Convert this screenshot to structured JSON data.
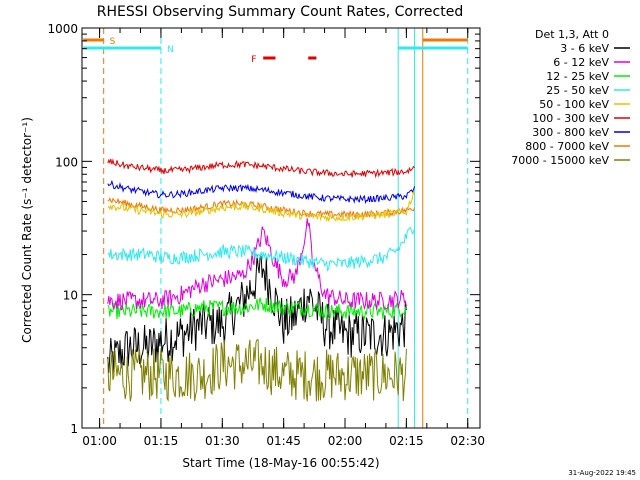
{
  "chart_data": {
    "type": "line",
    "title": "RHESSI Observing Summary Count Rates, Corrected",
    "xlabel": "Start Time (18-May-16 00:55:42)",
    "ylabel": "Corrected Count Rate (s⁻¹ detector⁻¹)",
    "y_scale": "log",
    "ylim": [
      1,
      1000
    ],
    "xlim": [
      "00:55:42",
      "02:33:00"
    ],
    "x_ticks": [
      "01:00",
      "01:15",
      "01:30",
      "01:45",
      "02:00",
      "02:15",
      "02:30"
    ],
    "y_ticks": [
      "1",
      "10",
      "100",
      "1000"
    ],
    "grid": false,
    "legend_position": "right",
    "legend_header": "Det 1,3, Att 0",
    "timestamp": "31-Aug-2022 19:45",
    "flags": [
      {
        "label": "S",
        "color": "#f07800",
        "segments": [
          [
            "00:56",
            "01:01"
          ],
          [
            "02:19",
            "02:30"
          ]
        ]
      },
      {
        "label": "N",
        "color": "#30e8f0",
        "segments": [
          [
            "00:56",
            "01:15"
          ],
          [
            "02:13",
            "02:30"
          ]
        ]
      },
      {
        "label": "F",
        "color": "#e00000",
        "segments": [
          [
            "01:40",
            "01:43"
          ],
          [
            "01:51",
            "01:53"
          ]
        ]
      }
    ],
    "vertical_markers": [
      {
        "time": "01:01",
        "color": "#f07800",
        "style": "dashed"
      },
      {
        "time": "01:15",
        "color": "#30e8f0",
        "style": "dashed"
      },
      {
        "time": "02:13",
        "color": "#30e8f0",
        "style": "solid"
      },
      {
        "time": "02:17",
        "color": "#30e8f0",
        "style": "solid"
      },
      {
        "time": "02:19",
        "color": "#f07800",
        "style": "solid"
      },
      {
        "time": "02:30",
        "color": "#30e8f0",
        "style": "dashed"
      }
    ],
    "series": [
      {
        "name": "3 - 6 keV",
        "color": "#000000",
        "x": [
          "01:02",
          "01:07",
          "01:12",
          "01:15",
          "01:20",
          "01:25",
          "01:30",
          "01:35",
          "01:40",
          "01:43",
          "01:45",
          "01:48",
          "01:51",
          "01:55",
          "02:00",
          "02:05",
          "02:10",
          "02:15"
        ],
        "values": [
          3,
          4,
          4,
          4.5,
          5,
          6,
          6,
          9,
          16,
          9,
          6,
          7,
          10,
          6,
          5,
          5,
          5,
          6
        ]
      },
      {
        "name": "6 - 12 keV",
        "color": "#e000e0",
        "x": [
          "01:02",
          "01:07",
          "01:12",
          "01:15",
          "01:20",
          "01:25",
          "01:30",
          "01:35",
          "01:38",
          "01:40",
          "01:43",
          "01:45",
          "01:48",
          "01:51",
          "01:52",
          "01:55",
          "02:00",
          "02:05",
          "02:10",
          "02:15"
        ],
        "values": [
          9,
          9,
          9,
          9,
          10,
          12,
          13,
          14,
          20,
          30,
          17,
          13,
          14,
          35,
          18,
          10,
          9,
          9,
          9,
          9.5
        ]
      },
      {
        "name": "12 - 25 keV",
        "color": "#00ee00",
        "x": [
          "01:02",
          "01:07",
          "01:12",
          "01:15",
          "01:20",
          "01:25",
          "01:30",
          "01:35",
          "01:40",
          "01:45",
          "01:50",
          "01:55",
          "02:00",
          "02:05",
          "02:10",
          "02:15"
        ],
        "values": [
          7.5,
          7.5,
          7.5,
          7.5,
          7.5,
          8,
          8,
          8,
          8.5,
          8,
          8,
          7.5,
          7.5,
          7.5,
          7.5,
          8
        ]
      },
      {
        "name": "25 - 50 keV",
        "color": "#30e8f0",
        "x": [
          "01:02",
          "01:07",
          "01:12",
          "01:15",
          "01:20",
          "01:25",
          "01:30",
          "01:35",
          "01:40",
          "01:45",
          "01:50",
          "01:55",
          "02:00",
          "02:05",
          "02:10",
          "02:13",
          "02:15",
          "02:17"
        ],
        "values": [
          20,
          20,
          20,
          19,
          19,
          20,
          21,
          21,
          20,
          19,
          18,
          17,
          17,
          18,
          19,
          22,
          27,
          34
        ]
      },
      {
        "name": "50 - 100 keV",
        "color": "#e8c000",
        "x": [
          "01:02",
          "01:07",
          "01:12",
          "01:15",
          "01:20",
          "01:25",
          "01:30",
          "01:35",
          "01:40",
          "01:45",
          "01:50",
          "01:55",
          "02:00",
          "02:05",
          "02:10",
          "02:15",
          "02:17"
        ],
        "values": [
          47,
          44,
          42,
          40,
          40,
          42,
          45,
          46,
          44,
          41,
          39,
          38,
          38,
          39,
          40,
          42,
          60
        ]
      },
      {
        "name": "100 - 300 keV",
        "color": "#e00000",
        "x": [
          "01:02",
          "01:07",
          "01:12",
          "01:15",
          "01:20",
          "01:25",
          "01:30",
          "01:35",
          "01:40",
          "01:45",
          "01:50",
          "01:55",
          "02:00",
          "02:05",
          "02:10",
          "02:15",
          "02:17"
        ],
        "values": [
          100,
          92,
          88,
          85,
          86,
          90,
          94,
          95,
          92,
          88,
          84,
          82,
          80,
          81,
          82,
          84,
          90
        ]
      },
      {
        "name": "300 - 800 keV",
        "color": "#0000ee",
        "x": [
          "01:02",
          "01:07",
          "01:12",
          "01:15",
          "01:20",
          "01:25",
          "01:30",
          "01:35",
          "01:40",
          "01:45",
          "01:50",
          "01:55",
          "02:00",
          "02:05",
          "02:10",
          "02:15",
          "02:17"
        ],
        "values": [
          68,
          62,
          58,
          56,
          57,
          60,
          63,
          63,
          61,
          58,
          55,
          53,
          52,
          52,
          53,
          55,
          62
        ]
      },
      {
        "name": "800 - 7000 keV",
        "color": "#f07800",
        "x": [
          "01:02",
          "01:07",
          "01:12",
          "01:15",
          "01:20",
          "01:25",
          "01:30",
          "01:35",
          "01:40",
          "01:45",
          "01:50",
          "01:55",
          "02:00",
          "02:05",
          "02:10",
          "02:15",
          "02:17"
        ],
        "values": [
          52,
          48,
          45,
          43,
          43,
          45,
          48,
          48,
          46,
          43,
          41,
          40,
          40,
          40,
          41,
          43,
          45
        ]
      },
      {
        "name": "7000 - 15000 keV",
        "color": "#808000",
        "x": [
          "01:02",
          "01:07",
          "01:12",
          "01:15",
          "01:20",
          "01:25",
          "01:30",
          "01:35",
          "01:40",
          "01:45",
          "01:50",
          "01:55",
          "02:00",
          "02:05",
          "02:10",
          "02:15"
        ],
        "values": [
          2.5,
          2.5,
          2.5,
          2.5,
          2.5,
          2.5,
          3,
          3,
          3,
          2.5,
          2.5,
          2.5,
          2.5,
          2.5,
          2.5,
          2.5
        ]
      }
    ]
  }
}
